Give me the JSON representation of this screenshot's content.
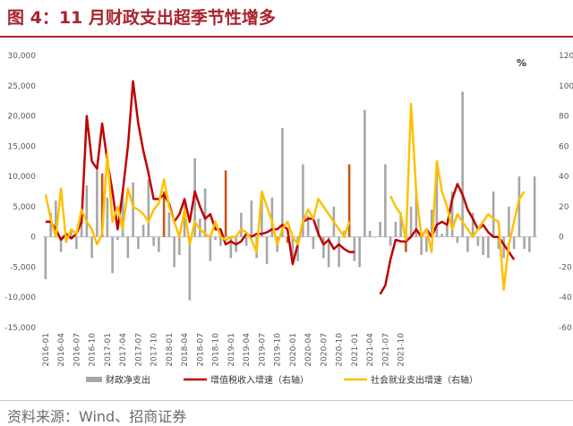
{
  "title": "图 4：11 月财政支出超季节性增多",
  "source": "资料来源：Wind、招商证券",
  "chart_data": {
    "type": "bar+line",
    "y_left": {
      "min": -15000,
      "max": 30000,
      "step": 5000,
      "ticks": [
        "-15,000",
        "-10,000",
        "-5,000",
        "0",
        "5,000",
        "10,000",
        "15,000",
        "20,000",
        "25,000",
        "30,000"
      ]
    },
    "y_right": {
      "min": -60,
      "max": 120,
      "step": 20,
      "unit": "%",
      "ticks": [
        "-60",
        "-40",
        "-20",
        "0",
        "20",
        "40",
        "60",
        "80",
        "100",
        "120"
      ]
    },
    "x_tick_labels": [
      "2016-01",
      "2016-04",
      "2016-07",
      "2016-10",
      "2017-01",
      "2017-04",
      "2017-07",
      "2017-10",
      "2018-01",
      "2018-04",
      "2018-07",
      "2018-10",
      "2019-01",
      "2019-04",
      "2019-07",
      "2019-10",
      "2020-01",
      "2020-04",
      "2020-07",
      "2020-10",
      "2021-01",
      "2021-04",
      "2021-07",
      "2021-10"
    ],
    "x_start": "2016-01",
    "series": [
      {
        "name": "财政净支出",
        "axis": "left",
        "kind": "bar",
        "color": "#a6a6a6",
        "highlight_color": "#c55a11",
        "values": [
          -7000,
          4000,
          6000,
          -2500,
          -1000,
          1000,
          -2000,
          3500,
          8500,
          -3500,
          11000,
          10500,
          6500,
          -6000,
          -500,
          8000,
          -3500,
          9000,
          -2000,
          2000,
          9500,
          -1500,
          -2500,
          7500,
          4000,
          -5000,
          -3000,
          6000,
          -10500,
          13000,
          3000,
          8000,
          -4000,
          -500,
          -1500,
          11000,
          -3500,
          -2500,
          4000,
          -1500,
          6000,
          -3500,
          6500,
          -4500,
          6500,
          -2500,
          18000,
          -1000,
          -4000,
          -4000,
          12000,
          3500,
          -2000,
          3000,
          -3500,
          -5000,
          5000,
          -5000,
          1000,
          12000,
          -4000,
          -5000,
          21000,
          1000,
          0,
          2500,
          12000,
          -1500,
          2500,
          4000,
          -2500,
          5000,
          7500,
          -3000,
          -2500,
          4500,
          11000,
          500,
          2000,
          7500,
          -1000,
          24000,
          -2500,
          4000,
          -1500,
          -3000,
          -3500,
          7500,
          -2000,
          -3500,
          5000,
          -2000,
          10000,
          -2000,
          -2500,
          10000
        ],
        "highlight_months": [
          "2016-12",
          "2017-12",
          "2018-12",
          "2019-12",
          "2020-12",
          "2021-11"
        ]
      },
      {
        "name": "增值税收入增速（右轴）",
        "axis": "right",
        "kind": "line",
        "color": "#c00000",
        "values": [
          10,
          10,
          5,
          -2,
          2,
          -1,
          2,
          10,
          80,
          50,
          45,
          75,
          50,
          30,
          5,
          30,
          60,
          103,
          75,
          57,
          42,
          25,
          25,
          28,
          22,
          10,
          15,
          25,
          10,
          30,
          20,
          12,
          15,
          5,
          5,
          -5,
          -3,
          -5,
          -3,
          2,
          0,
          2,
          2,
          3,
          5,
          5,
          8,
          5,
          -18,
          -5,
          10,
          12,
          12,
          2,
          -5,
          -2,
          -8,
          -5,
          -8,
          -10,
          -10,
          null,
          null,
          null,
          null,
          -38,
          -32,
          -15,
          -2,
          -3,
          -3,
          0,
          5,
          0,
          5,
          0,
          8,
          10,
          8,
          25,
          35,
          28,
          18,
          12,
          5,
          8,
          3,
          0,
          0,
          -5,
          -10,
          -15
        ]
      },
      {
        "name": "社会就业支出增速（右轴）",
        "axis": "right",
        "kind": "line",
        "color": "#ffc000",
        "values": [
          28,
          12,
          0,
          32,
          -3,
          5,
          2,
          18,
          10,
          5,
          -5,
          2,
          55,
          10,
          20,
          5,
          32,
          20,
          18,
          15,
          10,
          18,
          22,
          38,
          20,
          10,
          0,
          18,
          -5,
          10,
          5,
          2,
          0,
          10,
          0,
          -2,
          0,
          0,
          5,
          3,
          -2,
          -10,
          30,
          20,
          10,
          -5,
          5,
          10,
          0,
          -5,
          10,
          18,
          12,
          25,
          20,
          15,
          10,
          5,
          0,
          10,
          null,
          null,
          null,
          null,
          null,
          null,
          null,
          27,
          20,
          15,
          -2,
          88,
          30,
          0,
          5,
          -10,
          50,
          30,
          20,
          5,
          15,
          10,
          5,
          0,
          5,
          10,
          15,
          12,
          10,
          -35,
          -5,
          10,
          25,
          30
        ]
      }
    ],
    "legend": [
      "财政净支出",
      "增值税收入增速（右轴）",
      "社会就业支出增速（右轴）"
    ],
    "legend_position": "bottom"
  }
}
